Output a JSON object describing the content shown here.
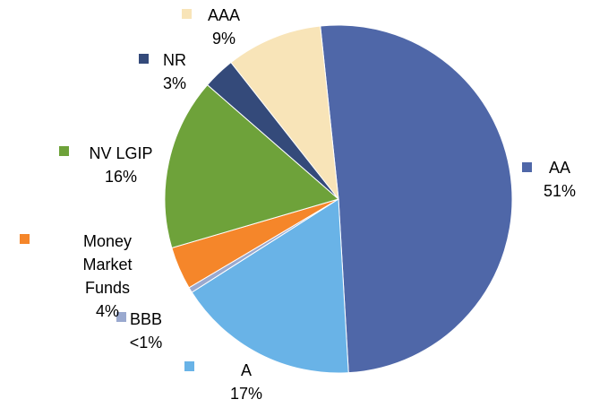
{
  "chart_data": {
    "type": "pie",
    "categories": [
      "AA",
      "A",
      "BBB",
      "Money Market Funds",
      "NV LGIP",
      "NR",
      "AAA"
    ],
    "values": [
      51,
      17,
      0.5,
      4,
      16,
      3,
      9
    ],
    "value_labels": [
      "51%",
      "17%",
      "<1%",
      "4%",
      "16%",
      "3%",
      "9%"
    ],
    "colors": [
      "#4f67a8",
      "#69b3e7",
      "#9aa9cf",
      "#f5862a",
      "#6ea23a",
      "#344a7a",
      "#f8e4b8"
    ]
  }
}
